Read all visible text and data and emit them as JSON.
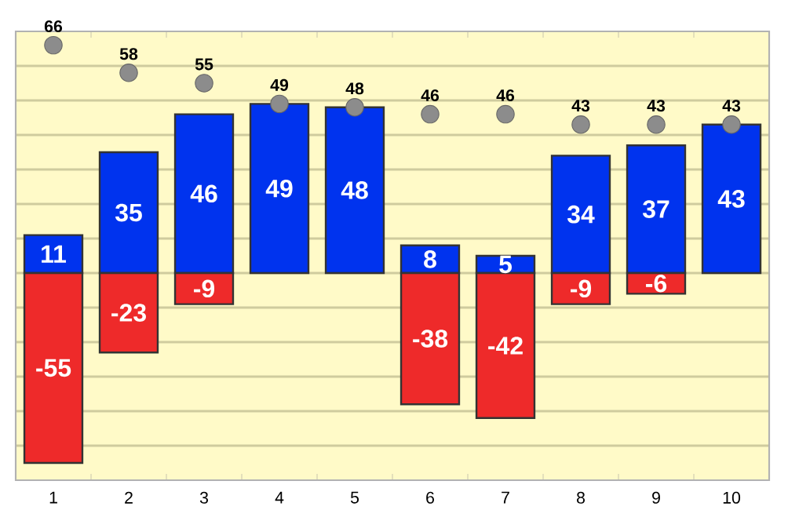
{
  "chart_data": {
    "type": "bar",
    "categories": [
      "1",
      "2",
      "3",
      "4",
      "5",
      "6",
      "7",
      "8",
      "9",
      "10"
    ],
    "stacked": true,
    "data_labels": true,
    "grid": "y",
    "tick_labels": "x",
    "ylim": [
      -60,
      70
    ],
    "yticks": [
      {
        "value": -50,
        "label": null
      },
      {
        "value": -40,
        "label": null
      },
      {
        "value": -30,
        "label": null
      },
      {
        "value": -20,
        "label": null
      },
      {
        "value": -10,
        "label": null
      },
      {
        "value": 0,
        "label": null
      },
      {
        "value": 10,
        "label": null
      },
      {
        "value": 20,
        "label": null
      },
      {
        "value": 30,
        "label": null
      },
      {
        "value": 40,
        "label": null
      },
      {
        "value": 50,
        "label": null
      },
      {
        "value": 60,
        "label": null
      }
    ],
    "series": [
      {
        "color": "#0033ee",
        "values": [
          11,
          35,
          46,
          49,
          48,
          8,
          5,
          34,
          37,
          43
        ]
      },
      {
        "color": "#ee2a2a",
        "values": [
          -55,
          -23,
          -9,
          null,
          null,
          -38,
          -42,
          -9,
          -6,
          null
        ]
      },
      {
        "type": "scatter",
        "color": "#8c8c8c",
        "values": [
          66,
          58,
          55,
          49,
          48,
          46,
          46,
          43,
          43,
          43
        ]
      }
    ]
  }
}
